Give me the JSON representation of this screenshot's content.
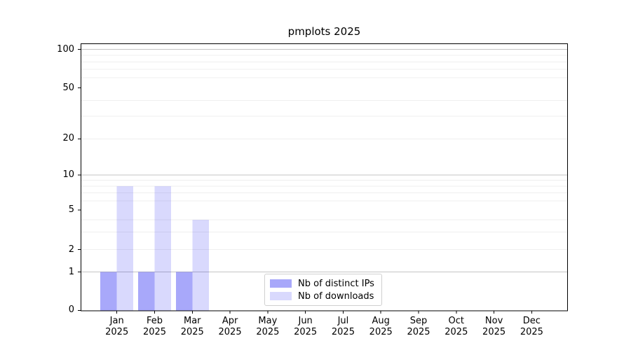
{
  "title": "pmplots 2025",
  "chart_data": {
    "type": "bar",
    "title": "pmplots 2025",
    "categories": [
      "Jan 2025",
      "Feb 2025",
      "Mar 2025",
      "Apr 2025",
      "May 2025",
      "Jun 2025",
      "Jul 2025",
      "Aug 2025",
      "Sep 2025",
      "Oct 2025",
      "Nov 2025",
      "Dec 2025"
    ],
    "series": [
      {
        "name": "Nb of distinct IPs",
        "values": [
          1,
          1,
          1,
          0,
          0,
          0,
          0,
          0,
          0,
          0,
          0,
          0
        ],
        "color": "#0000f0",
        "opacity": 0.34
      },
      {
        "name": "Nb of downloads",
        "values": [
          8,
          8,
          4,
          0,
          0,
          0,
          0,
          0,
          0,
          0,
          0,
          0
        ],
        "color": "#0000f0",
        "opacity": 0.15
      }
    ],
    "xlabel": "",
    "ylabel": "",
    "yscale": "symlog",
    "yticks": [
      0,
      1,
      2,
      5,
      10,
      20,
      50,
      100
    ],
    "ylim": [
      0,
      110
    ],
    "major_gridlines": [
      1,
      10,
      100
    ],
    "minor_gridlines": [
      2,
      3,
      4,
      6,
      7,
      8,
      9,
      20,
      30,
      40,
      60,
      70,
      80,
      90
    ],
    "grid": true,
    "legend_position": "lower-center-inside"
  },
  "legend": {
    "items": [
      {
        "label": "Nb of distinct IPs",
        "color": "#0000f0",
        "opacity": 0.34
      },
      {
        "label": "Nb of downloads",
        "color": "#0000f0",
        "opacity": 0.15
      }
    ]
  },
  "colors": {
    "background": "#ffffff",
    "axis": "#000000",
    "major_grid": "#c4c4c4",
    "minor_grid": "#efefef",
    "bar_distinct_ips_rendered": "#a8a8f7",
    "bar_downloads_rendered": "#d9d9f9",
    "legend_border": "#d0d0d0",
    "text": "#000000"
  }
}
